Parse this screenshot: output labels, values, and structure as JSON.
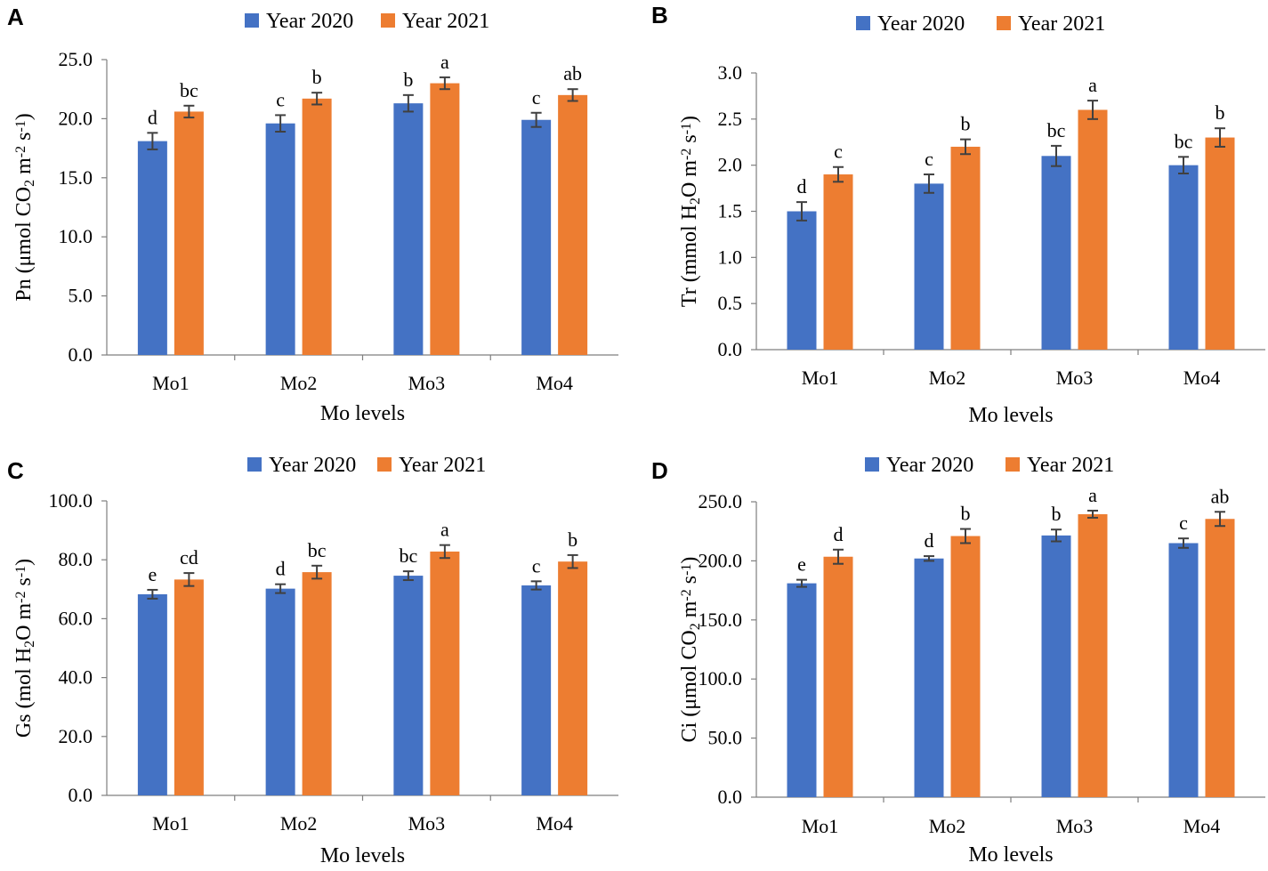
{
  "colors": {
    "year2020": "#4472C4",
    "year2021": "#ED7D31",
    "axis": "#7f7f7f",
    "errorbar": "#404040"
  },
  "legend": [
    "Year 2020",
    "Year 2021"
  ],
  "chart_data": [
    {
      "panel": "A",
      "type": "bar",
      "categories": [
        "Mo1",
        "Mo2",
        "Mo3",
        "Mo4"
      ],
      "series": [
        {
          "name": "Year 2020",
          "values": [
            18.1,
            19.6,
            21.3,
            19.9
          ],
          "errors": [
            0.7,
            0.7,
            0.7,
            0.6
          ],
          "letters": [
            "d",
            "c",
            "b",
            "c"
          ]
        },
        {
          "name": "Year 2021",
          "values": [
            20.6,
            21.7,
            23.0,
            22.0
          ],
          "errors": [
            0.5,
            0.5,
            0.5,
            0.5
          ],
          "letters": [
            "bc",
            "b",
            "a",
            "ab"
          ]
        }
      ],
      "xlabel": "Mo levels",
      "ylabel": "Pn (μmol CO2 m-2 s-1)",
      "ylabel_parts": [
        {
          "t": "Pn (μmol CO"
        },
        {
          "t": "2",
          "s": "sub"
        },
        {
          "t": " m"
        },
        {
          "t": "-2",
          "s": "sup"
        },
        {
          "t": " s"
        },
        {
          "t": "-1",
          "s": "sup"
        },
        {
          "t": ")"
        }
      ],
      "ylim": [
        0,
        25
      ],
      "ticks": [
        "0.0",
        "5.0",
        "10.0",
        "15.0",
        "20.0",
        "25.0"
      ]
    },
    {
      "panel": "B",
      "type": "bar",
      "categories": [
        "Mo1",
        "Mo2",
        "Mo3",
        "Mo4"
      ],
      "series": [
        {
          "name": "Year 2020",
          "values": [
            1.5,
            1.8,
            2.1,
            2.0
          ],
          "errors": [
            0.1,
            0.1,
            0.11,
            0.09
          ],
          "letters": [
            "d",
            "c",
            "bc",
            "bc"
          ]
        },
        {
          "name": "Year 2021",
          "values": [
            1.9,
            2.2,
            2.6,
            2.3
          ],
          "errors": [
            0.08,
            0.08,
            0.1,
            0.1
          ],
          "letters": [
            "c",
            "b",
            "a",
            "b"
          ]
        }
      ],
      "xlabel": "Mo levels",
      "ylabel": "Tr (mmol H2O m-2 s-1)",
      "ylabel_parts": [
        {
          "t": "Tr (mmol H"
        },
        {
          "t": "2",
          "s": "sub"
        },
        {
          "t": "O m"
        },
        {
          "t": "-2",
          "s": "sup"
        },
        {
          "t": " s"
        },
        {
          "t": "-1",
          "s": "sup"
        },
        {
          "t": ")"
        }
      ],
      "ylim": [
        0,
        3
      ],
      "ticks": [
        "0.0",
        "0.5",
        "1.0",
        "1.5",
        "2.0",
        "2.5",
        "3.0"
      ]
    },
    {
      "panel": "C",
      "type": "bar",
      "categories": [
        "Mo1",
        "Mo2",
        "Mo3",
        "Mo4"
      ],
      "series": [
        {
          "name": "Year 2020",
          "values": [
            68.3,
            70.2,
            74.6,
            71.3
          ],
          "errors": [
            1.5,
            1.5,
            1.5,
            1.4
          ],
          "letters": [
            "e",
            "d",
            "bc",
            "c"
          ]
        },
        {
          "name": "Year 2021",
          "values": [
            73.3,
            75.8,
            82.8,
            79.4
          ],
          "errors": [
            2.2,
            2.2,
            2.2,
            2.2
          ],
          "letters": [
            "cd",
            "bc",
            "a",
            "b"
          ]
        }
      ],
      "xlabel": "Mo levels",
      "ylabel": "Gs (mol H2O m-2 s-1)",
      "ylabel_parts": [
        {
          "t": "Gs (mol H"
        },
        {
          "t": "2",
          "s": "sub"
        },
        {
          "t": "O m"
        },
        {
          "t": "-2",
          "s": "sup"
        },
        {
          "t": " s"
        },
        {
          "t": "-1",
          "s": "sup"
        },
        {
          "t": ")"
        }
      ],
      "ylim": [
        0,
        100
      ],
      "ticks": [
        "0.0",
        "20.0",
        "40.0",
        "60.0",
        "80.0",
        "100.0"
      ]
    },
    {
      "panel": "D",
      "type": "bar",
      "categories": [
        "Mo1",
        "Mo2",
        "Mo3",
        "Mo4"
      ],
      "series": [
        {
          "name": "Year 2020",
          "values": [
            181,
            202,
            221.5,
            215
          ],
          "errors": [
            3,
            2,
            5,
            4
          ],
          "letters": [
            "e",
            "d",
            "b",
            "c"
          ]
        },
        {
          "name": "Year 2021",
          "values": [
            203.5,
            221,
            239.5,
            235.5
          ],
          "errors": [
            6,
            6,
            3,
            6
          ],
          "letters": [
            "d",
            "b",
            "a",
            "ab"
          ]
        }
      ],
      "xlabel": "Mo levels",
      "ylabel": "Ci (μmol CO2 m-2 s-1)",
      "ylabel_parts": [
        {
          "t": "Ci (μmol CO"
        },
        {
          "t": "2",
          "s": "sub"
        },
        {
          "t": " m"
        },
        {
          "t": "-2",
          "s": "sup"
        },
        {
          "t": " s"
        },
        {
          "t": "-1",
          "s": "sup"
        },
        {
          "t": ")"
        }
      ],
      "ylim": [
        0,
        250
      ],
      "ticks": [
        "0.0",
        "50.0",
        "100.0",
        "150.0",
        "200.0",
        "250.0"
      ]
    }
  ]
}
